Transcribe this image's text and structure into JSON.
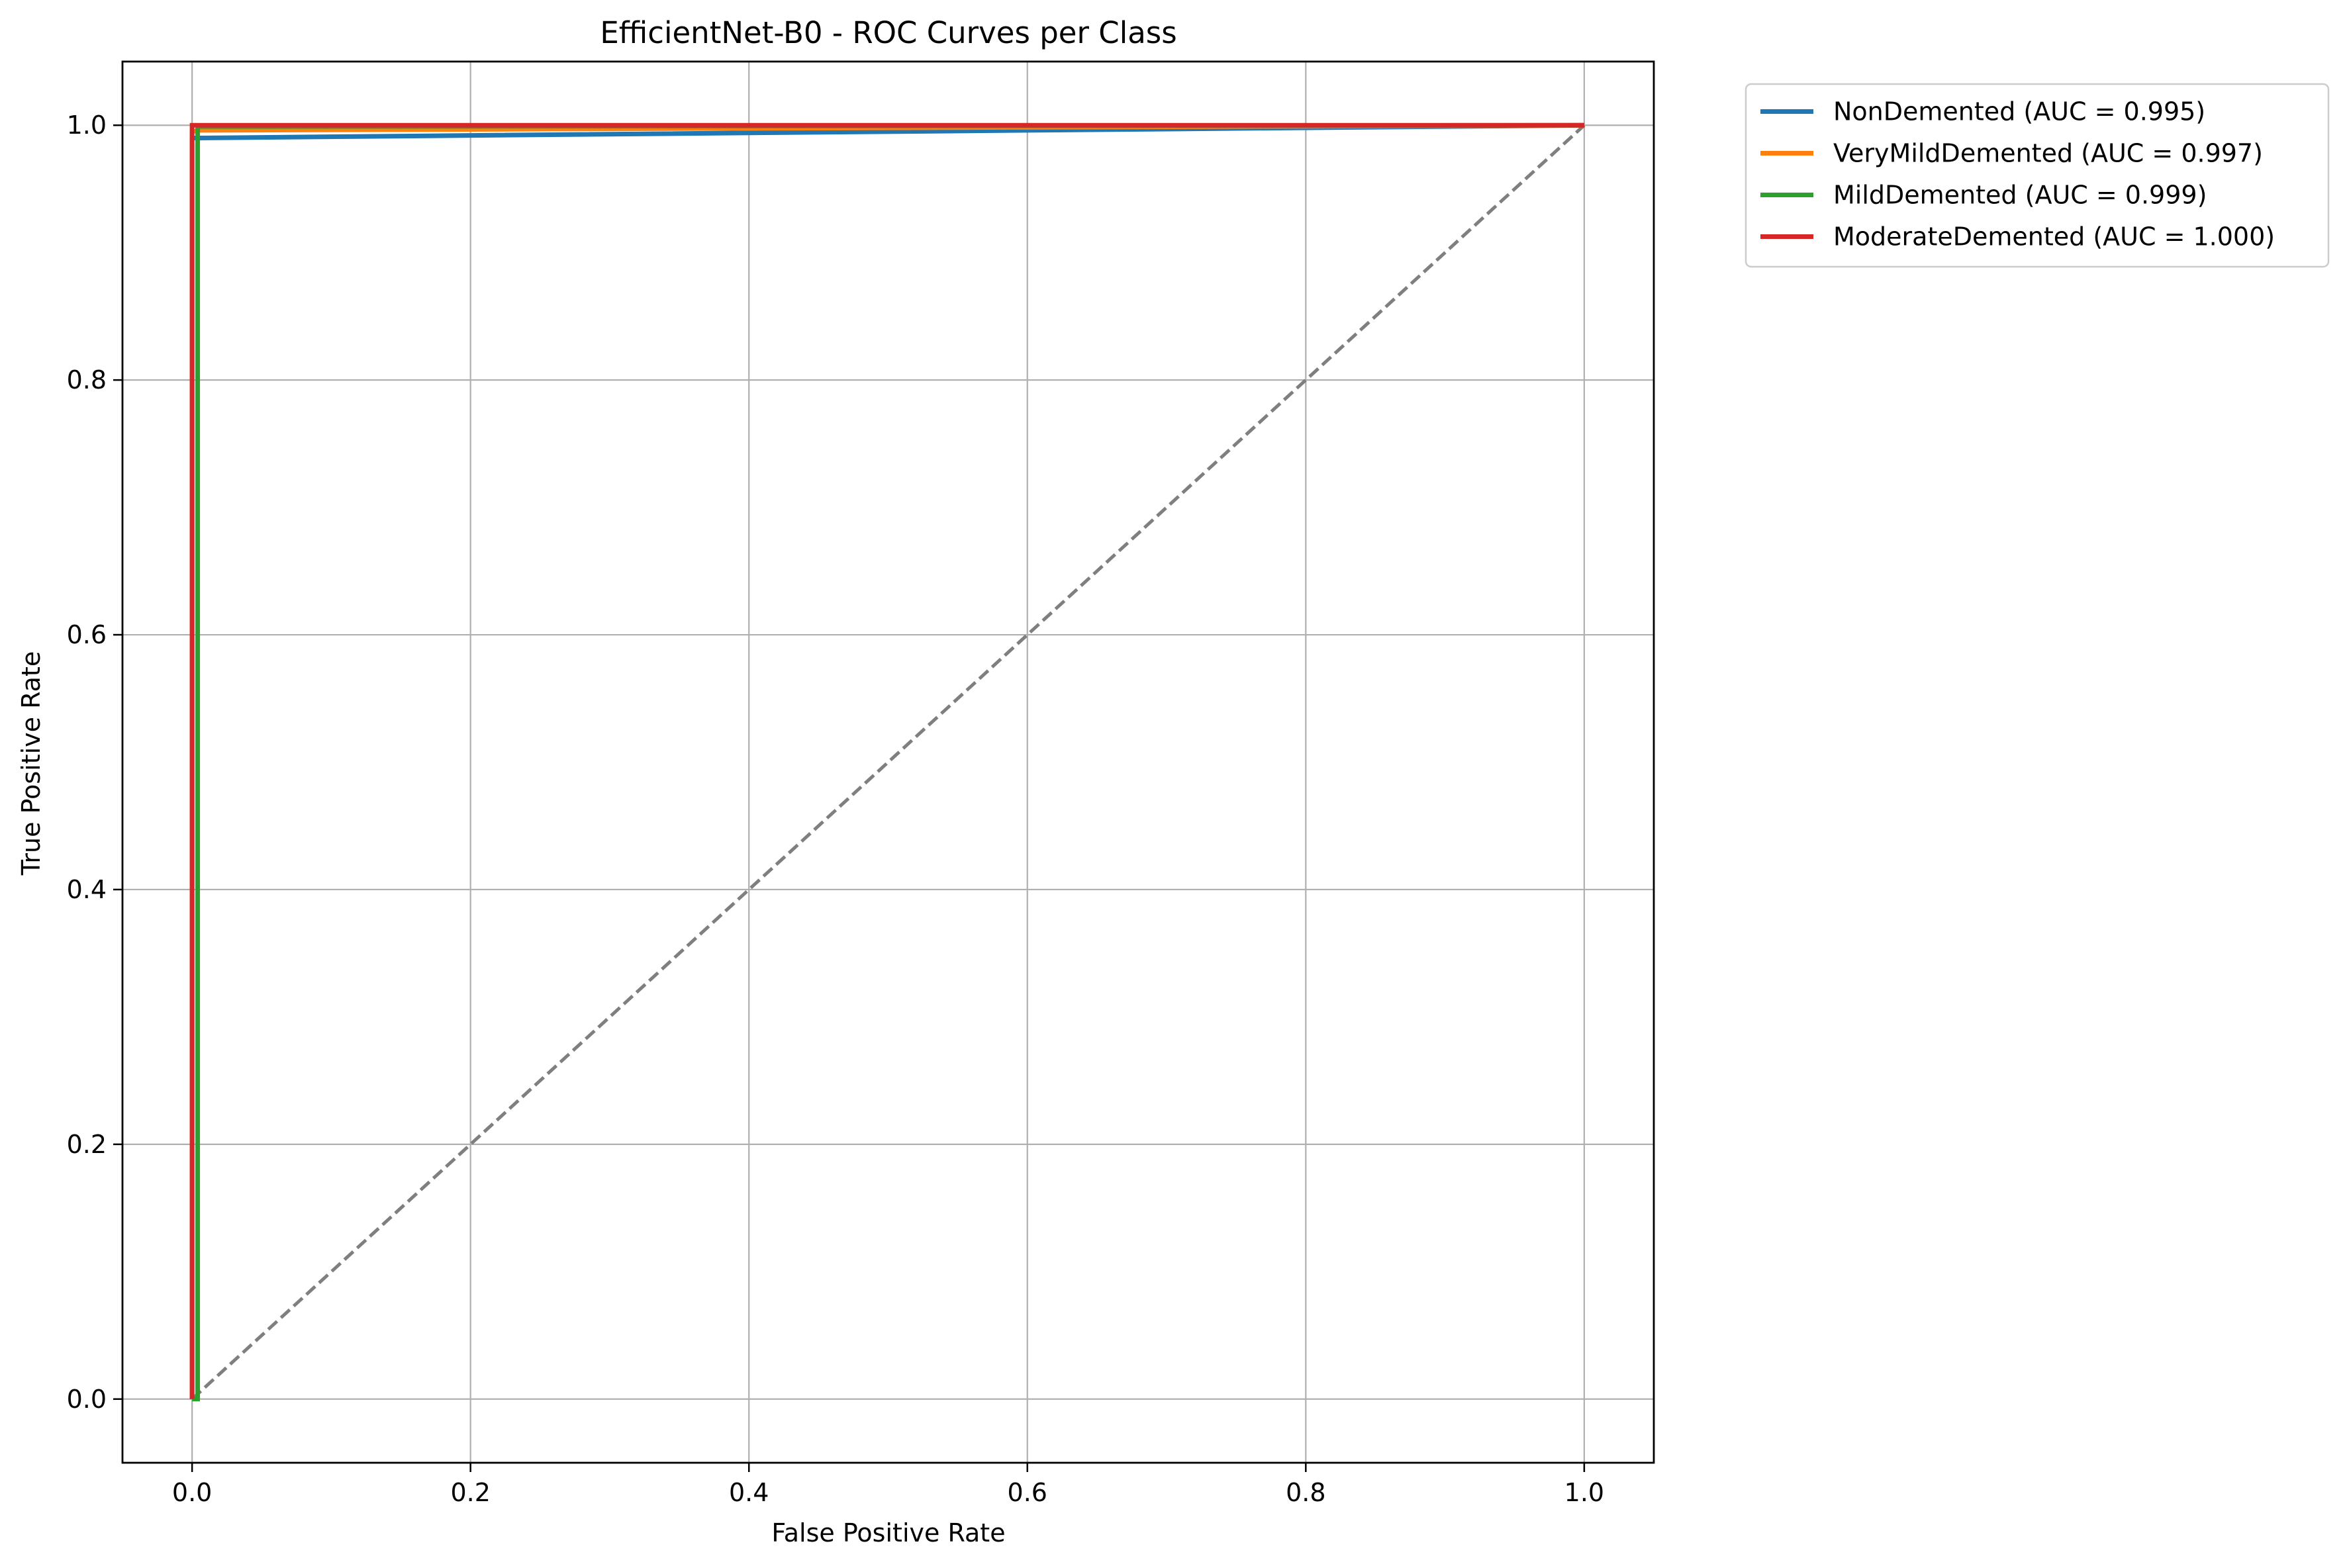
{
  "chart_data": {
    "type": "line",
    "title": "EfficientNet-B0 - ROC Curves per Class",
    "xlabel": "False Positive Rate",
    "ylabel": "True Positive Rate",
    "xlim": [
      -0.05,
      1.05
    ],
    "ylim": [
      -0.05,
      1.05
    ],
    "xticks": [
      0.0,
      0.2,
      0.4,
      0.6,
      0.8,
      1.0
    ],
    "yticks": [
      0.0,
      0.2,
      0.4,
      0.6,
      0.8,
      1.0
    ],
    "xtick_labels": [
      "0.0",
      "0.2",
      "0.4",
      "0.6",
      "0.8",
      "1.0"
    ],
    "ytick_labels": [
      "0.0",
      "0.2",
      "0.4",
      "0.6",
      "0.8",
      "1.0"
    ],
    "grid": true,
    "legend_position": "outside-top-right",
    "series": [
      {
        "name": "NonDemented",
        "label": "NonDemented (AUC = 0.995)",
        "auc": 0.995,
        "color": "#1f77b4",
        "x": [
          0.0,
          0.0,
          0.005,
          0.2,
          1.0
        ],
        "y": [
          0.0,
          0.99,
          0.99,
          0.992,
          1.0
        ]
      },
      {
        "name": "VeryMildDemented",
        "label": "VeryMildDemented (AUC = 0.997)",
        "auc": 0.997,
        "color": "#ff7f0e",
        "x": [
          0.0,
          0.0,
          0.005,
          1.0
        ],
        "y": [
          0.0,
          0.995,
          0.996,
          1.0
        ]
      },
      {
        "name": "MildDemented",
        "label": "MildDemented (AUC = 0.999)",
        "auc": 0.999,
        "color": "#2ca02c",
        "x": [
          0.0,
          0.004,
          0.004,
          1.0
        ],
        "y": [
          0.0,
          0.0,
          0.999,
          1.0
        ]
      },
      {
        "name": "ModerateDemented",
        "label": "ModerateDemented (AUC = 1.000)",
        "auc": 1.0,
        "color": "#d62728",
        "x": [
          0.0,
          0.0,
          1.0
        ],
        "y": [
          0.0,
          1.0,
          1.0
        ]
      }
    ],
    "reference_line": {
      "name": "chance",
      "x": [
        0.0,
        1.0
      ],
      "y": [
        0.0,
        1.0
      ],
      "color": "#7f7f7f",
      "style": "dashed"
    }
  }
}
